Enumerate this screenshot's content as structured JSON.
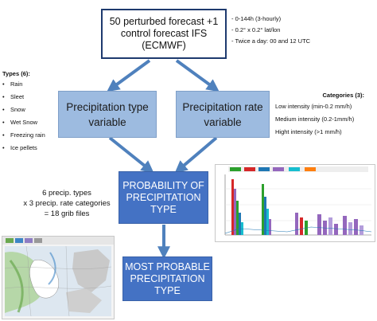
{
  "top_box": {
    "line1": "50 perturbed forecast +1",
    "line2": "control forecast IFS (ECMWF)"
  },
  "top_notes": [
    "- 0-144h (3-hourly)",
    "- 0.2° x 0.2° lat/lon",
    "- Twice a day: 00 and 12 UTC"
  ],
  "types": {
    "title": "Types (6):",
    "items": [
      "Rain",
      "Sleet",
      "Snow",
      "Wet Snow",
      "Freezing rain",
      "Ice pellets"
    ]
  },
  "categories": {
    "title": "Categories (3):",
    "items": [
      "Low intensity (min-0.2 mm/h)",
      "Medium intensity (0.2-1mm/h)",
      "Hight intensity (>1 mm/h)"
    ]
  },
  "type_box": {
    "line1": "Precipitation type",
    "line2": "variable"
  },
  "rate_box": {
    "line1": "Precipitation rate",
    "line2": "variable"
  },
  "prob_box": {
    "line1": "PROBABILITY OF",
    "line2": "PRECIPITATION",
    "line3": "TYPE"
  },
  "most_box": {
    "line1": "MOST PROBABLE",
    "line2": "PRECIPITATION",
    "line3": "TYPE"
  },
  "grib_note": {
    "line1": "6 precip. types",
    "line2": "x 3 precip. rate categories",
    "line3": "= 18 grib files"
  },
  "colors": {
    "arrow": "#4f81bd",
    "dark_box": "#4472c4",
    "light_box": "#9dbbe0",
    "top_border": "#1e3a6e"
  }
}
